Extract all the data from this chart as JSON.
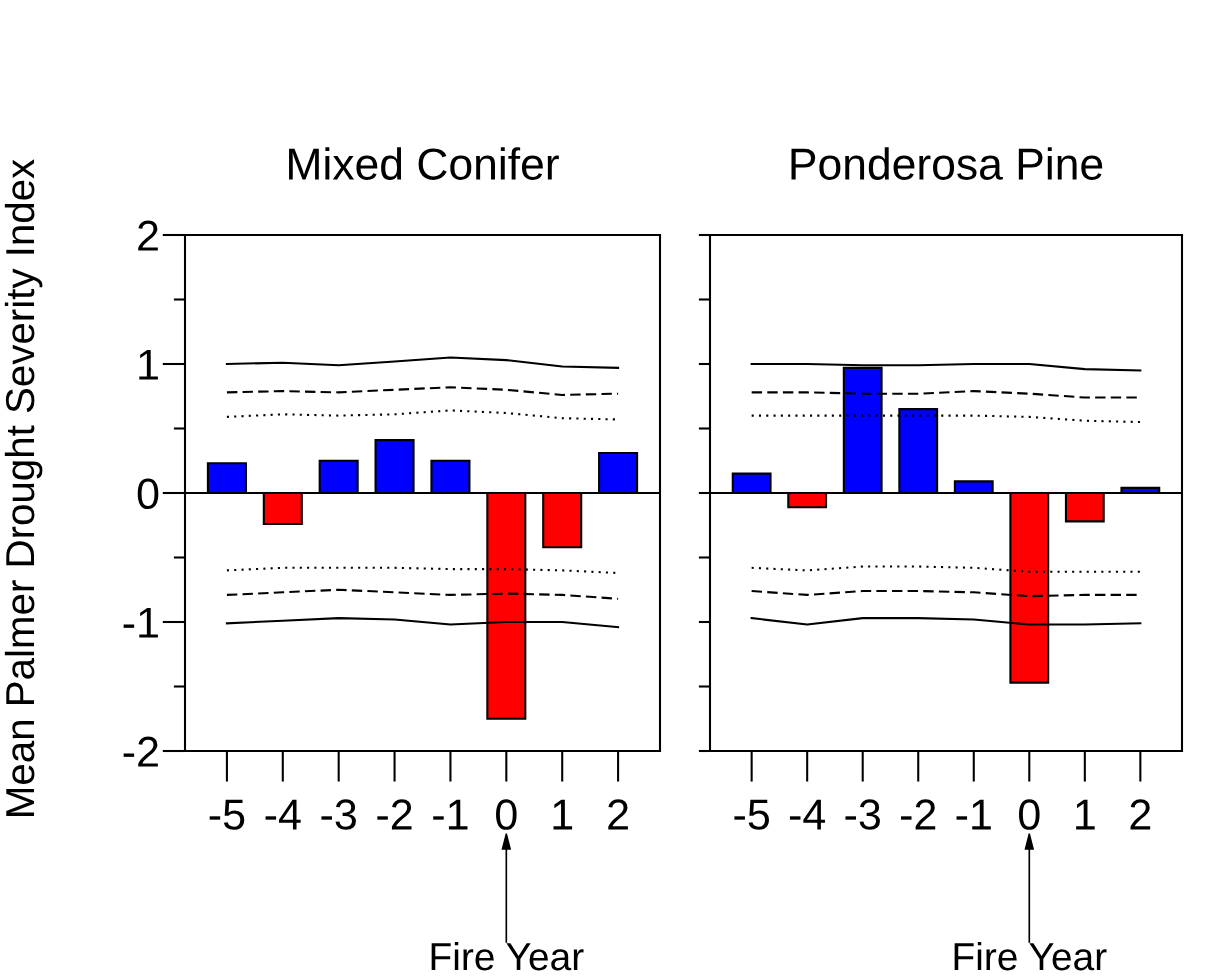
{
  "chart_data": [
    {
      "type": "bar",
      "title": "Mixed Conifer",
      "ylabel": "Mean Palmer Drought Severity Index",
      "categories": [
        "-5",
        "-4",
        "-3",
        "-2",
        "-1",
        "0",
        "1",
        "2"
      ],
      "ylim": [
        -2,
        2
      ],
      "yticks": [
        -2,
        {
          "value": -1.5,
          "label": null
        },
        -1,
        {
          "value": -0.5,
          "label": null
        },
        0,
        {
          "value": 0.5,
          "label": null
        },
        1,
        {
          "value": 1.5,
          "label": null
        },
        2
      ],
      "series": [
        {
          "colors": [
            "#0000ff",
            "#ff0000",
            "#0000ff",
            "#0000ff",
            "#0000ff",
            "#ff0000",
            "#ff0000",
            "#0000ff"
          ],
          "values": [
            0.23,
            -0.24,
            0.25,
            0.41,
            0.25,
            -1.75,
            -0.42,
            0.31
          ]
        },
        {
          "type": "line",
          "color": "#000000",
          "line_style": "solid",
          "values": [
            1.0,
            1.01,
            0.99,
            1.02,
            1.05,
            1.03,
            0.98,
            0.97
          ]
        },
        {
          "type": "line",
          "color": "#000000",
          "line_style": "dashed",
          "values": [
            0.78,
            0.79,
            0.78,
            0.8,
            0.82,
            0.8,
            0.76,
            0.77
          ]
        },
        {
          "type": "line",
          "color": "#000000",
          "line_style": "dotted",
          "values": [
            0.59,
            0.61,
            0.6,
            0.61,
            0.64,
            0.62,
            0.58,
            0.57
          ]
        },
        {
          "type": "line",
          "color": "#000000",
          "line_style": "dotted",
          "values": [
            -0.6,
            -0.58,
            -0.58,
            -0.58,
            -0.59,
            -0.59,
            -0.6,
            -0.62
          ]
        },
        {
          "type": "line",
          "color": "#000000",
          "line_style": "dashed",
          "values": [
            -0.79,
            -0.77,
            -0.75,
            -0.77,
            -0.79,
            -0.78,
            -0.79,
            -0.82
          ]
        },
        {
          "type": "line",
          "color": "#000000",
          "line_style": "solid",
          "values": [
            -1.01,
            -0.99,
            -0.97,
            -0.98,
            -1.02,
            -1.0,
            -1.0,
            -1.04
          ]
        }
      ],
      "annotations": [
        {
          "text": "Fire Year",
          "x": "0"
        }
      ],
      "ref_lines": [
        {
          "axis": "y",
          "value": 0,
          "color": "#000000"
        }
      ],
      "grid": false,
      "legend": false
    },
    {
      "type": "bar",
      "title": "Ponderosa Pine",
      "categories": [
        "-5",
        "-4",
        "-3",
        "-2",
        "-1",
        "0",
        "1",
        "2"
      ],
      "ylim": [
        -2,
        2
      ],
      "yticks": [
        {
          "value": -2,
          "label": null
        },
        {
          "value": -1.5,
          "label": null
        },
        {
          "value": -1,
          "label": null
        },
        {
          "value": -0.5,
          "label": null
        },
        {
          "value": 0,
          "label": null
        },
        {
          "value": 0.5,
          "label": null
        },
        {
          "value": 1,
          "label": null
        },
        {
          "value": 1.5,
          "label": null
        },
        {
          "value": 2,
          "label": null
        }
      ],
      "tick_labels": "x",
      "series": [
        {
          "colors": [
            "#0000ff",
            "#ff0000",
            "#0000ff",
            "#0000ff",
            "#0000ff",
            "#ff0000",
            "#ff0000",
            "#0000ff"
          ],
          "values": [
            0.15,
            -0.11,
            0.97,
            0.65,
            0.09,
            -1.47,
            -0.22,
            0.04
          ]
        },
        {
          "type": "line",
          "color": "#000000",
          "line_style": "solid",
          "values": [
            1.0,
            1.0,
            0.99,
            0.99,
            1.0,
            1.0,
            0.96,
            0.95
          ]
        },
        {
          "type": "line",
          "color": "#000000",
          "line_style": "dashed",
          "values": [
            0.78,
            0.78,
            0.77,
            0.77,
            0.79,
            0.77,
            0.74,
            0.74
          ]
        },
        {
          "type": "line",
          "color": "#000000",
          "line_style": "dotted",
          "values": [
            0.6,
            0.6,
            0.6,
            0.6,
            0.6,
            0.59,
            0.56,
            0.55
          ]
        },
        {
          "type": "line",
          "color": "#000000",
          "line_style": "dotted",
          "values": [
            -0.58,
            -0.6,
            -0.57,
            -0.57,
            -0.58,
            -0.61,
            -0.61,
            -0.61
          ]
        },
        {
          "type": "line",
          "color": "#000000",
          "line_style": "dashed",
          "values": [
            -0.76,
            -0.79,
            -0.76,
            -0.76,
            -0.77,
            -0.8,
            -0.79,
            -0.79
          ]
        },
        {
          "type": "line",
          "color": "#000000",
          "line_style": "solid",
          "values": [
            -0.97,
            -1.02,
            -0.97,
            -0.97,
            -0.98,
            -1.02,
            -1.02,
            -1.01
          ]
        }
      ],
      "annotations": [
        {
          "text": "Fire Year",
          "x": "0"
        }
      ],
      "ref_lines": [
        {
          "axis": "y",
          "value": 0,
          "color": "#000000"
        }
      ],
      "grid": false,
      "legend": false
    }
  ]
}
